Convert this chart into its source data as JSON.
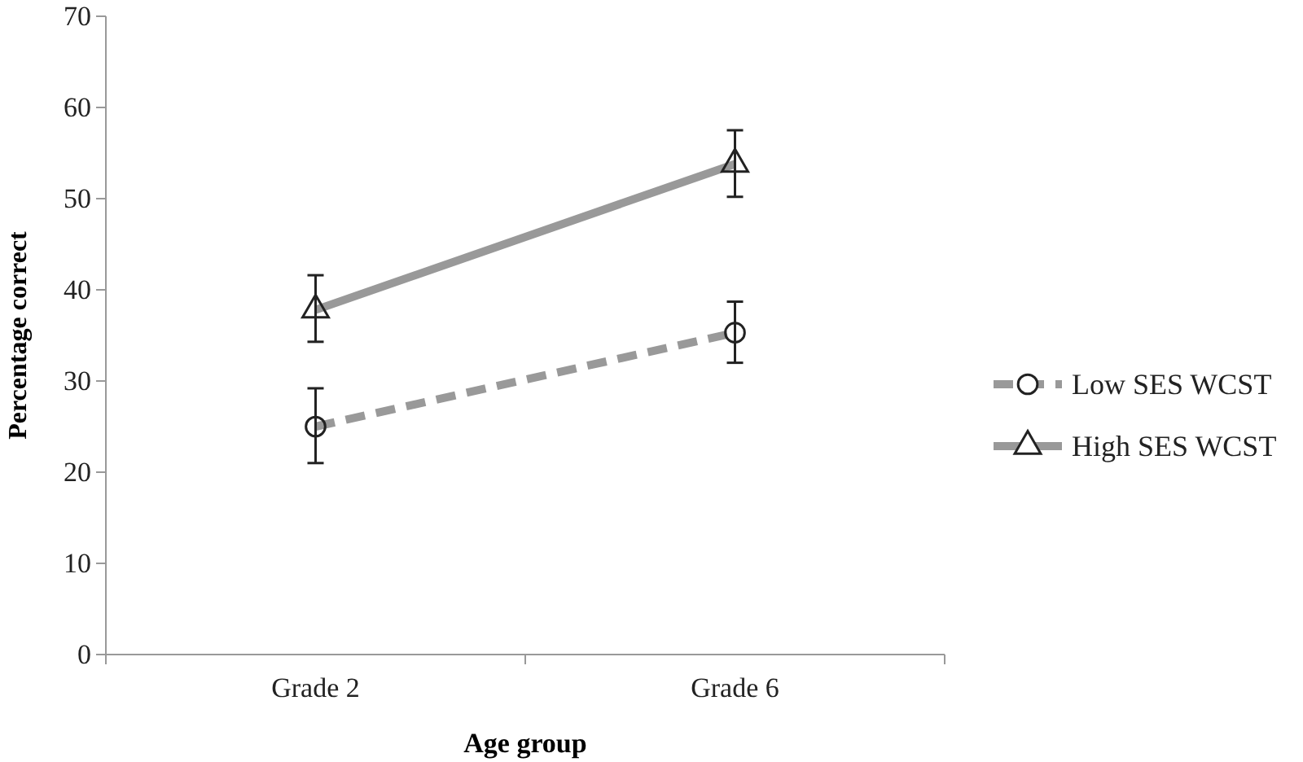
{
  "chart_data": {
    "type": "line",
    "xlabel": "Age group",
    "ylabel": "Percentage correct",
    "categories": [
      "Grade 2",
      "Grade 6"
    ],
    "series": [
      {
        "name": "Low SES WCST",
        "color": "#999999",
        "values": [
          25,
          35.3
        ],
        "errors": [
          [
            21,
            29.2
          ],
          [
            32,
            38.7
          ]
        ],
        "marker": "circle",
        "line_style": "dashed"
      },
      {
        "name": "High SES WCST",
        "color": "#999999",
        "values": [
          37.8,
          53.8
        ],
        "errors": [
          [
            34.3,
            41.6
          ],
          [
            50.2,
            57.5
          ]
        ],
        "marker": "triangle",
        "line_style": "solid"
      }
    ],
    "ylim": [
      0,
      70
    ],
    "yticks": [
      0,
      10,
      20,
      30,
      40,
      50,
      60,
      70
    ],
    "grid": false,
    "legend": "right"
  }
}
